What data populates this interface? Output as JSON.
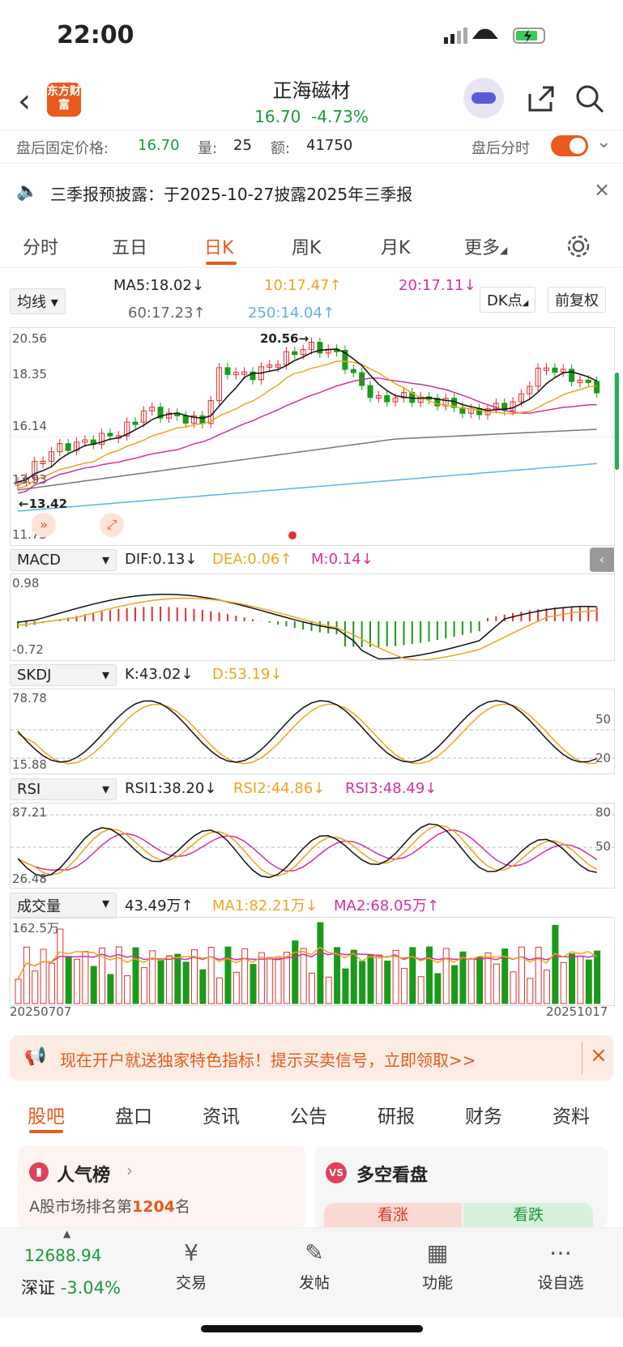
{
  "status": {
    "time": "22:00"
  },
  "header": {
    "logo_text": "东方财富",
    "stock_name": "正海磁材",
    "price": "16.70",
    "change": "-4.73%"
  },
  "after_hours": {
    "label": "盘后固定价格:",
    "price": "16.70",
    "vol_label": "量:",
    "vol": "25",
    "amt_label": "额:",
    "amt": "41750",
    "toggle_label": "盘后分时"
  },
  "notice": {
    "text": "三季报预披露：于2025-10-27披露2025年三季报"
  },
  "tabs": [
    "分时",
    "五日",
    "日K",
    "周K",
    "月K",
    "更多"
  ],
  "kline": {
    "ma_select": "均线",
    "ma5": "MA5:18.02↓",
    "ma10": "10:17.47↑",
    "ma20": "20:17.11↓",
    "ma60": "60:17.23↑",
    "ma250": "250:14.04↑",
    "dk_button": "DK点",
    "adjust_button": "前复权",
    "y_labels": [
      "20.56",
      "18.35",
      "16.14",
      "13.93",
      "11.73"
    ],
    "high_label": "20.56→",
    "low_label": "←13.42"
  },
  "macd": {
    "select": "MACD",
    "dif": "DIF:0.13↓",
    "dea": "DEA:0.06↑",
    "m": "M:0.14↓",
    "y_labels": [
      "0.98",
      "-0.72"
    ]
  },
  "skdj": {
    "select": "SKDJ",
    "k": "K:43.02↓",
    "d": "D:53.19↓",
    "y_labels": [
      "78.78",
      "15.88"
    ],
    "right_labels": [
      "50",
      "20"
    ]
  },
  "rsi": {
    "select": "RSI",
    "rsi1": "RSI1:38.20↓",
    "rsi2": "RSI2:44.86↓",
    "rsi3": "RSI3:48.49↓",
    "y_labels": [
      "87.21",
      "26.48"
    ],
    "right_labels": [
      "80",
      "50"
    ]
  },
  "volume": {
    "select": "成交量",
    "val": "43.49万↑",
    "ma1": "MA1:82.21万↓",
    "ma2": "MA2:68.05万↑",
    "y_label": "162.5万",
    "start_date": "20250707",
    "end_date": "20251017"
  },
  "banner": {
    "text": "现在开户就送独家特色指标！提示买卖信号，立即领取>>"
  },
  "bottom_tabs": [
    "股吧",
    "盘口",
    "资讯",
    "公告",
    "研报",
    "财务",
    "资料"
  ],
  "cards": {
    "popularity_title": "人气榜",
    "rank_text": "A股市场排名第",
    "rank": "1204",
    "rank_suffix": "名",
    "bullbear_title": "多空看盘",
    "bull": "看涨",
    "bear": "看跌"
  },
  "nav": {
    "index_value": "12688.94",
    "index_name": "深证",
    "index_change": "-3.04%",
    "items": [
      "交易",
      "发帖",
      "功能",
      "设自选"
    ]
  },
  "colors": {
    "up": "#e03030",
    "down": "#1a9a1a",
    "brand": "#ea5a1d"
  },
  "chart_data": {
    "type": "bar",
    "ylim": [
      11.73,
      20.56
    ],
    "categories": [
      "20250707",
      "20251017"
    ]
  }
}
